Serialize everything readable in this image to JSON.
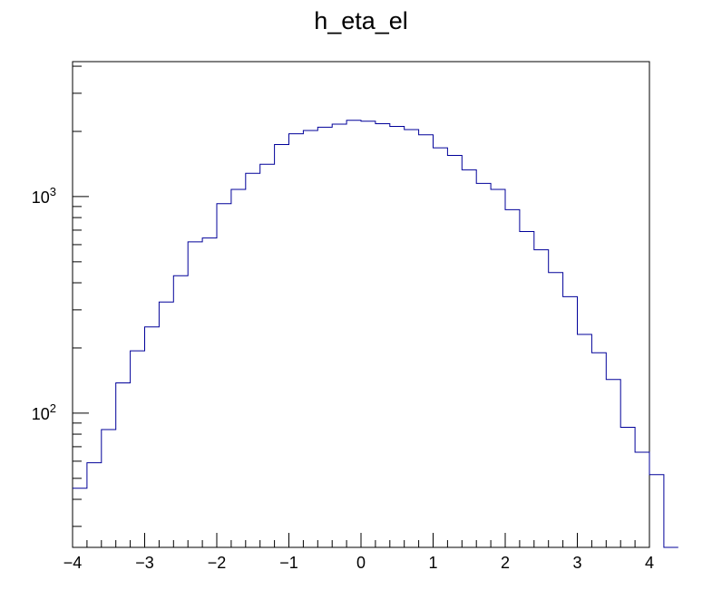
{
  "chart_data": {
    "type": "histogram",
    "title": "h_eta_el",
    "xlabel": "",
    "ylabel": "",
    "xlim": [
      -4,
      4
    ],
    "ylim": [
      24,
      4200
    ],
    "y_scale": "log",
    "bin_width": 0.2,
    "bin_edges_start": -4,
    "x_major_ticks": [
      -4,
      -3,
      -2,
      -1,
      0,
      1,
      2,
      3,
      4
    ],
    "x_tick_labels": [
      "−4",
      "−3",
      "−2",
      "−1",
      "0",
      "1",
      "2",
      "3",
      "4"
    ],
    "y_labeled_ticks": [
      {
        "value": 100,
        "base": "10",
        "exp": "2"
      },
      {
        "value": 1000,
        "base": "10",
        "exp": "3"
      }
    ],
    "series": [
      {
        "color": "#000099",
        "values": [
          45,
          59,
          84,
          138,
          194,
          250,
          326,
          431,
          618,
          644,
          927,
          1080,
          1280,
          1410,
          1740,
          1950,
          2020,
          2090,
          2160,
          2250,
          2230,
          2170,
          2110,
          2040,
          1930,
          1680,
          1550,
          1330,
          1150,
          1080,
          870,
          690,
          568,
          446,
          345,
          231,
          190,
          143,
          86,
          66,
          52,
          22
        ]
      }
    ],
    "grid": false,
    "legend": "none"
  }
}
